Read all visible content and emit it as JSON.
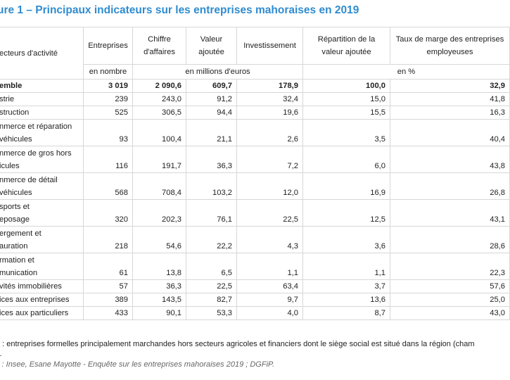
{
  "title": "ure 1 – Principaux indicateurs sur les entreprises mahoraises en 2019",
  "header": {
    "c0": "ecteurs d'activité",
    "c1": "Entreprises",
    "c2": "Chiffre d'affaires",
    "c3": "Valeur ajoutée",
    "c4": "Investissement",
    "c5": "Répartition de la valeur ajoutée",
    "c6": "Taux de marge des entreprises employeuses",
    "unit_count": "en nombre",
    "unit_money": "en millions d'euros",
    "unit_pct": "en %"
  },
  "rows": [
    {
      "label": "emble",
      "v": [
        "3 019",
        "2 090,6",
        "609,7",
        "178,9",
        "100,0",
        "32,9"
      ]
    },
    {
      "label": "strie",
      "v": [
        "239",
        "243,0",
        "91,2",
        "32,4",
        "15,0",
        "41,8"
      ]
    },
    {
      "label": "struction",
      "v": [
        "525",
        "306,5",
        "94,4",
        "19,6",
        "15,5",
        "16,3"
      ]
    },
    {
      "label": "nmerce et réparation",
      "label2": "véhicules",
      "v": [
        "93",
        "100,4",
        "21,1",
        "2,6",
        "3,5",
        "40,4"
      ]
    },
    {
      "label": "nmerce de gros hors",
      "label2": "icules",
      "v": [
        "116",
        "191,7",
        "36,3",
        "7,2",
        "6,0",
        "43,8"
      ]
    },
    {
      "label": "nmerce de détail",
      "label2": "véhicules",
      "v": [
        "568",
        "708,4",
        "103,2",
        "12,0",
        "16,9",
        "26,8"
      ]
    },
    {
      "label": "sports et",
      "label2": "eposage",
      "v": [
        "320",
        "202,3",
        "76,1",
        "22,5",
        "12,5",
        "43,1"
      ]
    },
    {
      "label": "ergement et",
      "label2": "auration",
      "v": [
        "218",
        "54,6",
        "22,2",
        "4,3",
        "3,6",
        "28,6"
      ]
    },
    {
      "label": "rmation et",
      "label2": "munication",
      "v": [
        "61",
        "13,8",
        "6,5",
        "1,1",
        "1,1",
        "22,3"
      ]
    },
    {
      "label": "vités immobilières",
      "v": [
        "57",
        "36,3",
        "22,5",
        "63,4",
        "3,7",
        "57,6"
      ]
    },
    {
      "label": "ices aux entreprises",
      "v": [
        "389",
        "143,5",
        "82,7",
        "9,7",
        "13,6",
        "25,0"
      ]
    },
    {
      "label": "ices aux particuliers",
      "v": [
        "433",
        "90,1",
        "53,3",
        "4,0",
        "8,7",
        "43,0"
      ]
    }
  ],
  "note": "p : entreprises formelles principalement marchandes hors secteurs agricoles et financiers dont le siège social est situé dans la région (cham",
  "note2": "s.",
  "source": "s : Insee, Esane Mayotte - Enquête sur les entreprises mahoraises 2019 ; DGFiP."
}
